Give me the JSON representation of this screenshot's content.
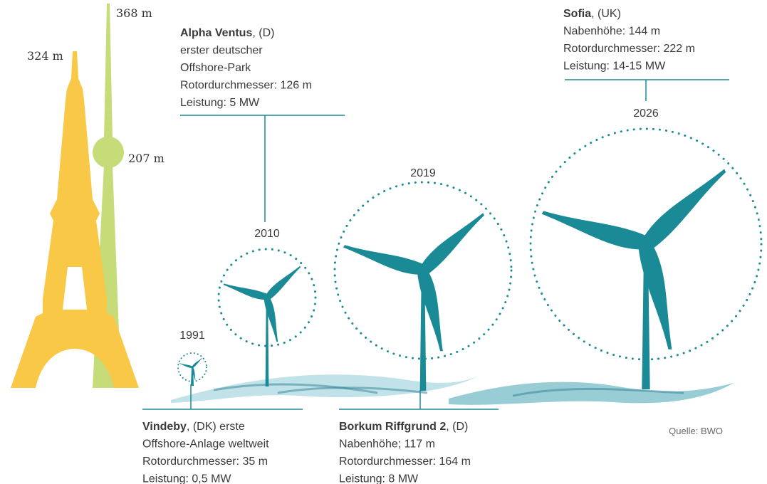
{
  "landmarks": [
    {
      "label": "324 m"
    },
    {
      "label": "368 m"
    },
    {
      "label": "207 m"
    }
  ],
  "turbines": [
    {
      "year": "1991",
      "name": "Vindeby",
      "country": ", (DK) erste",
      "details": [
        "Offshore-Anlage weltweit",
        "Rotordurchmesser: 35 m",
        "Leistung: 0,5 MW"
      ]
    },
    {
      "year": "2010",
      "name": "Alpha Ventus",
      "country": ", (D)",
      "details": [
        "erster deutscher",
        "Offshore-Park",
        "Rotordurchmesser: 126 m",
        "Leistung: 5 MW"
      ]
    },
    {
      "year": "2019",
      "name": "Borkum Riffgrund 2",
      "country": ", (D)",
      "details": [
        "Nabenhöhe; 117 m",
        "Rotordurchmesser: 164 m",
        "Leistung: 8 MW"
      ]
    },
    {
      "year": "2026",
      "name": "Sofia",
      "country": ", (UK)",
      "details": [
        "Nabenhöhe: 144 m",
        "Rotordurchmesser: 222 m",
        "Leistung: 14-15 MW"
      ]
    }
  ],
  "source": "Quelle: BWO"
}
